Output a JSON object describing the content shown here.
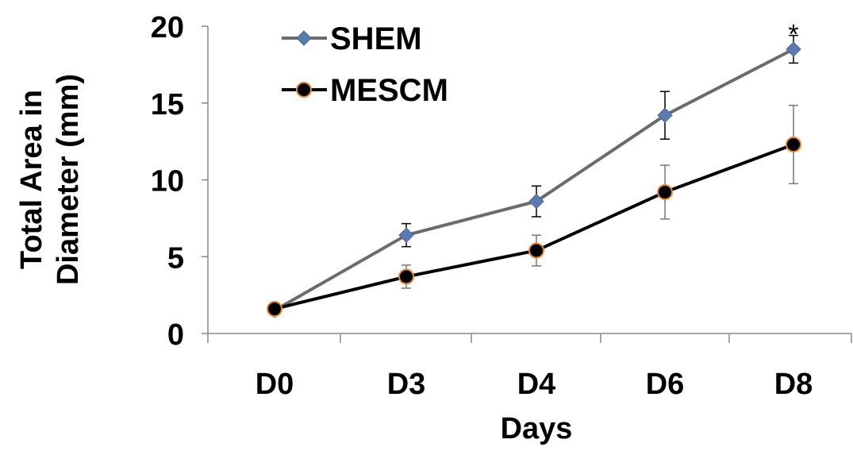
{
  "chart_data": {
    "type": "line",
    "title": "",
    "xlabel": "Days",
    "ylabel_lines": [
      "Total Area in",
      "Diameter (mm)"
    ],
    "categories": [
      "D0",
      "D3",
      "D4",
      "D6",
      "D8"
    ],
    "ylim": [
      0,
      20
    ],
    "yticks": [
      0,
      5,
      10,
      15,
      20
    ],
    "grid": false,
    "legend_position": "top-left",
    "series": [
      {
        "name": "SHEM",
        "values": [
          1.5,
          6.4,
          8.6,
          14.2,
          18.5
        ],
        "errors": [
          0.0,
          0.75,
          1.0,
          1.55,
          0.9
        ],
        "color": "#6b6b6b",
        "marker": "diamond",
        "marker_fill": "#5b7bb0"
      },
      {
        "name": "MESCM",
        "values": [
          1.6,
          3.7,
          5.4,
          9.2,
          12.3
        ],
        "errors": [
          0.0,
          0.75,
          1.0,
          1.75,
          2.55
        ],
        "color": "#000000",
        "marker": "circle",
        "marker_fill": "#000000",
        "marker_stroke": "#e08a3c"
      }
    ],
    "annotations": [
      {
        "text": "*",
        "category": "D8",
        "value": 19.4
      }
    ]
  }
}
